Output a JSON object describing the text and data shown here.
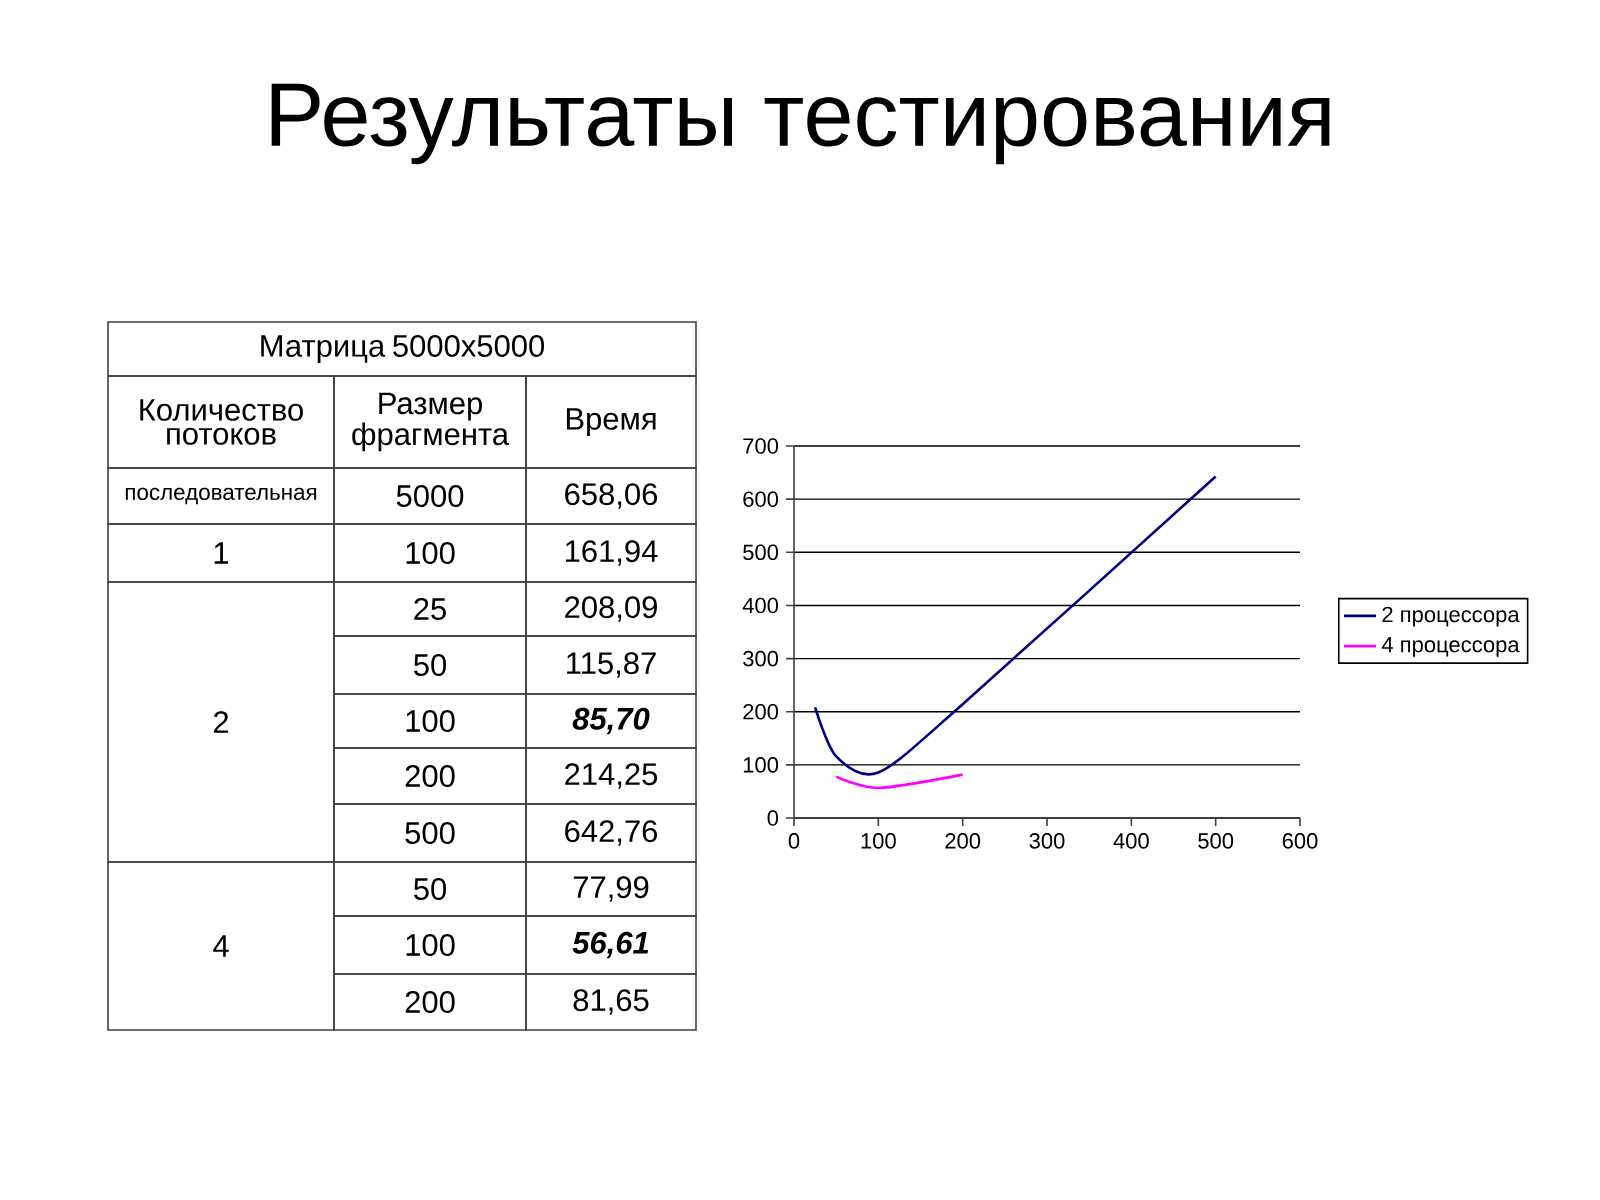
{
  "chart_data": [
    {
      "type": "other",
      "title": "Результаты тестирования",
      "annotations": [
        "Матрица 5000x5000",
        "Количество потоков",
        "Размер фрагмента",
        "Время",
        "последовательная",
        "5000",
        "658,06",
        "1",
        "100",
        "161,94",
        "2",
        "25",
        "208,09",
        "50",
        "115,87",
        "100",
        "85,70",
        "200",
        "214,25",
        "500",
        "642,76",
        "4",
        "50",
        "77,99",
        "100",
        "56,61",
        "200",
        "81,65"
      ]
    },
    {
      "type": "line",
      "series": [
        {
          "name": "2 процессора",
          "color": "#000080",
          "x": [
            25,
            50,
            100,
            200,
            500
          ],
          "values": [
            208.09,
            115.87,
            85.7,
            214.25,
            642.76
          ]
        },
        {
          "name": "4 процессора",
          "color": "#ff00ff",
          "x": [
            50,
            100,
            200
          ],
          "values": [
            77.99,
            56.61,
            81.65
          ]
        }
      ],
      "xlim": [
        0,
        600
      ],
      "xticks": [
        0,
        100,
        200,
        300,
        400,
        500,
        600
      ],
      "ylim": [
        0,
        700
      ],
      "yticks": [
        0,
        100,
        200,
        300,
        400,
        500,
        600,
        700
      ],
      "grid": "y",
      "legend": "right"
    }
  ]
}
